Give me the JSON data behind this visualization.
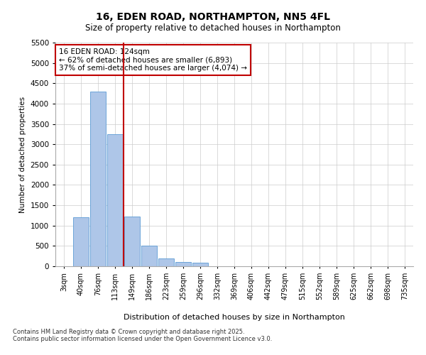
{
  "title1": "16, EDEN ROAD, NORTHAMPTON, NN5 4FL",
  "title2": "Size of property relative to detached houses in Northampton",
  "xlabel": "Distribution of detached houses by size in Northampton",
  "ylabel": "Number of detached properties",
  "annotation_title": "16 EDEN ROAD: 124sqm",
  "annotation_line1": "← 62% of detached houses are smaller (6,893)",
  "annotation_line2": "37% of semi-detached houses are larger (4,074) →",
  "vline_x": 3.5,
  "categories": [
    "3sqm",
    "40sqm",
    "76sqm",
    "113sqm",
    "149sqm",
    "186sqm",
    "223sqm",
    "259sqm",
    "296sqm",
    "332sqm",
    "369sqm",
    "406sqm",
    "442sqm",
    "479sqm",
    "515sqm",
    "552sqm",
    "589sqm",
    "625sqm",
    "662sqm",
    "698sqm",
    "735sqm"
  ],
  "values": [
    0,
    1200,
    4300,
    3250,
    1220,
    500,
    200,
    100,
    80,
    0,
    0,
    0,
    0,
    0,
    0,
    0,
    0,
    0,
    0,
    0,
    0
  ],
  "bar_color": "#aec6e8",
  "bar_edge_color": "#5b9bd5",
  "vline_color": "#c00000",
  "annotation_box_color": "#c00000",
  "grid_color": "#cccccc",
  "background_color": "#ffffff",
  "ylim": [
    0,
    5500
  ],
  "yticks": [
    0,
    500,
    1000,
    1500,
    2000,
    2500,
    3000,
    3500,
    4000,
    4500,
    5000,
    5500
  ],
  "footer1": "Contains HM Land Registry data © Crown copyright and database right 2025.",
  "footer2": "Contains public sector information licensed under the Open Government Licence v3.0."
}
